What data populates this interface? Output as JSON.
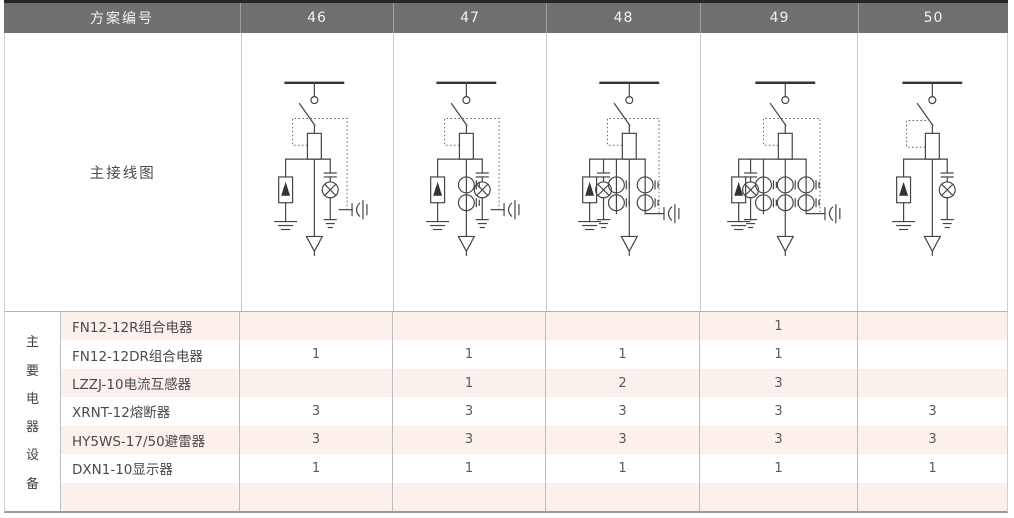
{
  "header": {
    "scheme_label": "方案编号",
    "schemes": [
      "46",
      "47",
      "48",
      "49",
      "50"
    ]
  },
  "diagram_row": {
    "label": "主接线图"
  },
  "diagrams": [
    {
      "scheme": "46",
      "components": [
        "busbar",
        "disconnector",
        "fuse",
        "surge-arrester",
        "indicator-lamp",
        "earthing-plug",
        "feeder-arrow"
      ],
      "current_transformers": 0,
      "lamp_side": "right",
      "interlock_plug": true
    },
    {
      "scheme": "47",
      "components": [
        "busbar",
        "disconnector",
        "fuse",
        "surge-arrester",
        "current-transformer",
        "indicator-lamp",
        "earthing-plug",
        "feeder-arrow"
      ],
      "current_transformers": 1,
      "lamp_side": "right",
      "interlock_plug": true
    },
    {
      "scheme": "48",
      "components": [
        "busbar",
        "disconnector",
        "fuse",
        "surge-arrester",
        "indicator-lamp",
        "current-transformer",
        "current-transformer",
        "earthing-plug",
        "feeder-arrow"
      ],
      "current_transformers": 2,
      "lamp_side": "left",
      "interlock_plug": true
    },
    {
      "scheme": "49",
      "components": [
        "busbar",
        "disconnector",
        "fuse",
        "surge-arrester",
        "indicator-lamp",
        "current-transformer",
        "current-transformer",
        "current-transformer",
        "earthing-plug",
        "feeder-arrow"
      ],
      "current_transformers": 3,
      "lamp_side": "left",
      "interlock_plug": true
    },
    {
      "scheme": "50",
      "components": [
        "busbar",
        "disconnector",
        "fuse",
        "surge-arrester",
        "indicator-lamp",
        "feeder-arrow"
      ],
      "current_transformers": 0,
      "lamp_side": "right",
      "interlock_plug": false
    }
  ],
  "equipment": {
    "group_label": "主要电器设备",
    "group_label_chars": [
      "主",
      "要",
      "电",
      "器",
      "设",
      "备"
    ],
    "rows": [
      {
        "name": "FN12-12R组合电器",
        "values": [
          "",
          "",
          "",
          "1",
          ""
        ]
      },
      {
        "name": "FN12-12DR组合电器",
        "values": [
          "1",
          "1",
          "1",
          "1",
          ""
        ]
      },
      {
        "name": "LZZJ-10电流互感器",
        "values": [
          "",
          "1",
          "2",
          "3",
          ""
        ]
      },
      {
        "name": "XRNT-12熔断器",
        "values": [
          "3",
          "3",
          "3",
          "3",
          "3"
        ]
      },
      {
        "name": "HY5WS-17/50避雷器",
        "values": [
          "3",
          "3",
          "3",
          "3",
          "3"
        ]
      },
      {
        "name": "DXN1-10显示器",
        "values": [
          "1",
          "1",
          "1",
          "1",
          "1"
        ]
      },
      {
        "name": "",
        "values": [
          "",
          "",
          "",
          "",
          ""
        ]
      }
    ]
  },
  "colors": {
    "header_bg": "#6f6f6f",
    "header_text": "#f2f2f2",
    "row_pink": "#fcf0ed",
    "border_light": "#bdbdbd",
    "schematic_line": "#444444"
  }
}
